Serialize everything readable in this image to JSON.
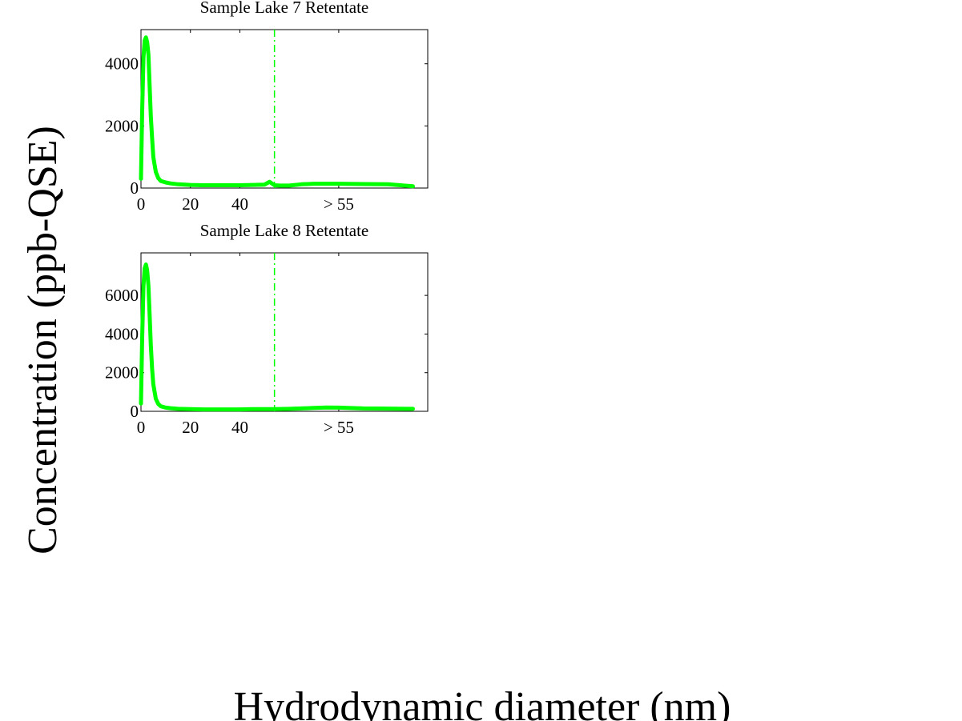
{
  "figure": {
    "xlabel": "Hydrodynamic diameter (nm)",
    "ylabel": "Concentration (ppb-QSE)"
  },
  "colors": {
    "series": "#00ff00",
    "marker_line": "#00ff00",
    "axes": "#000000",
    "background": "#ffffff"
  },
  "chart_data": [
    {
      "type": "line",
      "title": "Sample Lake 7 Retentate",
      "xlabel": "",
      "ylabel": "",
      "xlim": [
        0,
        116
      ],
      "ylim": [
        0,
        5100
      ],
      "x_ticks": [
        {
          "value": 0,
          "label": "0"
        },
        {
          "value": 20,
          "label": "20"
        },
        {
          "value": 40,
          "label": "40"
        },
        {
          "value": 80,
          "label": "> 55"
        }
      ],
      "y_ticks": [
        {
          "value": 0,
          "label": "0"
        },
        {
          "value": 2000,
          "label": "2000"
        },
        {
          "value": 4000,
          "label": "4000"
        }
      ],
      "vline_x": 54,
      "grid": false,
      "series": [
        {
          "x": [
            0,
            0.5,
            1,
            1.5,
            2,
            2.5,
            3,
            3.5,
            4,
            4.5,
            5,
            6,
            7,
            8,
            10,
            12,
            15,
            20,
            25,
            30,
            35,
            40,
            45,
            50,
            52,
            54,
            56,
            60,
            65,
            70,
            80,
            90,
            100,
            110
          ],
          "y": [
            300,
            2500,
            4200,
            4750,
            4850,
            4700,
            4300,
            3300,
            2300,
            1600,
            1000,
            520,
            320,
            230,
            180,
            150,
            120,
            100,
            90,
            90,
            90,
            90,
            100,
            110,
            200,
            90,
            80,
            80,
            120,
            140,
            140,
            130,
            120,
            60
          ]
        }
      ]
    },
    {
      "type": "line",
      "title": "Sample Lake 8 Retentate",
      "xlabel": "",
      "ylabel": "",
      "xlim": [
        0,
        116
      ],
      "ylim": [
        0,
        8200
      ],
      "x_ticks": [
        {
          "value": 0,
          "label": "0"
        },
        {
          "value": 20,
          "label": "20"
        },
        {
          "value": 40,
          "label": "40"
        },
        {
          "value": 80,
          "label": "> 55"
        }
      ],
      "y_ticks": [
        {
          "value": 0,
          "label": "0"
        },
        {
          "value": 2000,
          "label": "2000"
        },
        {
          "value": 4000,
          "label": "4000"
        },
        {
          "value": 6000,
          "label": "6000"
        }
      ],
      "vline_x": 54,
      "grid": false,
      "series": [
        {
          "x": [
            0,
            0.5,
            1,
            1.5,
            2,
            2.5,
            3,
            3.5,
            4,
            4.5,
            5,
            6,
            7,
            8,
            10,
            12,
            15,
            20,
            25,
            30,
            35,
            40,
            45,
            50,
            54,
            60,
            65,
            70,
            75,
            80,
            85,
            90,
            100,
            110
          ],
          "y": [
            400,
            3800,
            6500,
            7400,
            7600,
            7300,
            6500,
            5000,
            3400,
            2200,
            1400,
            650,
            380,
            260,
            190,
            160,
            130,
            110,
            100,
            100,
            100,
            100,
            110,
            110,
            110,
            130,
            150,
            180,
            200,
            190,
            170,
            150,
            140,
            130
          ]
        }
      ]
    }
  ]
}
